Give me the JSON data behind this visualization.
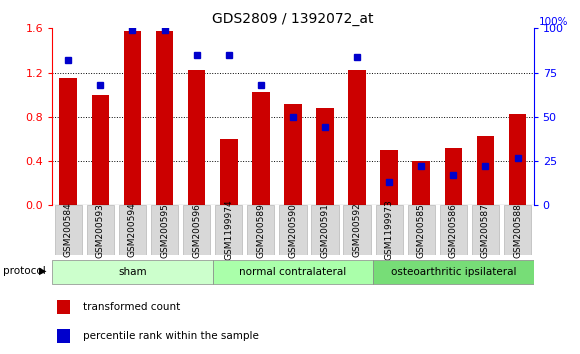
{
  "title": "GDS2809 / 1392072_at",
  "samples": [
    "GSM200584",
    "GSM200593",
    "GSM200594",
    "GSM200595",
    "GSM200596",
    "GSM1199974",
    "GSM200589",
    "GSM200590",
    "GSM200591",
    "GSM200592",
    "GSM1199973",
    "GSM200585",
    "GSM200586",
    "GSM200587",
    "GSM200588"
  ],
  "red_values": [
    1.15,
    1.0,
    1.58,
    1.58,
    1.22,
    0.6,
    1.02,
    0.92,
    0.88,
    1.22,
    0.5,
    0.4,
    0.52,
    0.63,
    0.83
  ],
  "blue_percentile": [
    82,
    68,
    99,
    99,
    85,
    85,
    68,
    50,
    44,
    84,
    13,
    22,
    17,
    22,
    27
  ],
  "ylim_left": [
    0,
    1.6
  ],
  "ylim_right": [
    0,
    100
  ],
  "yticks_left": [
    0,
    0.4,
    0.8,
    1.2,
    1.6
  ],
  "yticks_right": [
    0,
    25,
    50,
    75,
    100
  ],
  "groups": [
    {
      "label": "sham",
      "start": 0,
      "end": 5
    },
    {
      "label": "normal contralateral",
      "start": 5,
      "end": 10
    },
    {
      "label": "osteoarthritic ipsilateral",
      "start": 10,
      "end": 15
    }
  ],
  "group_colors": [
    "#ccffcc",
    "#aaffaa",
    "#77dd77"
  ],
  "bar_width": 0.55,
  "red_color": "#cc0000",
  "blue_color": "#0000cc",
  "bg_color": "#ffffff",
  "xtick_bg": "#d8d8d8",
  "legend1": "transformed count",
  "legend2": "percentile rank within the sample",
  "title_fontsize": 10,
  "tick_fontsize": 6.5,
  "group_fontsize": 7.5,
  "legend_fontsize": 7.5
}
